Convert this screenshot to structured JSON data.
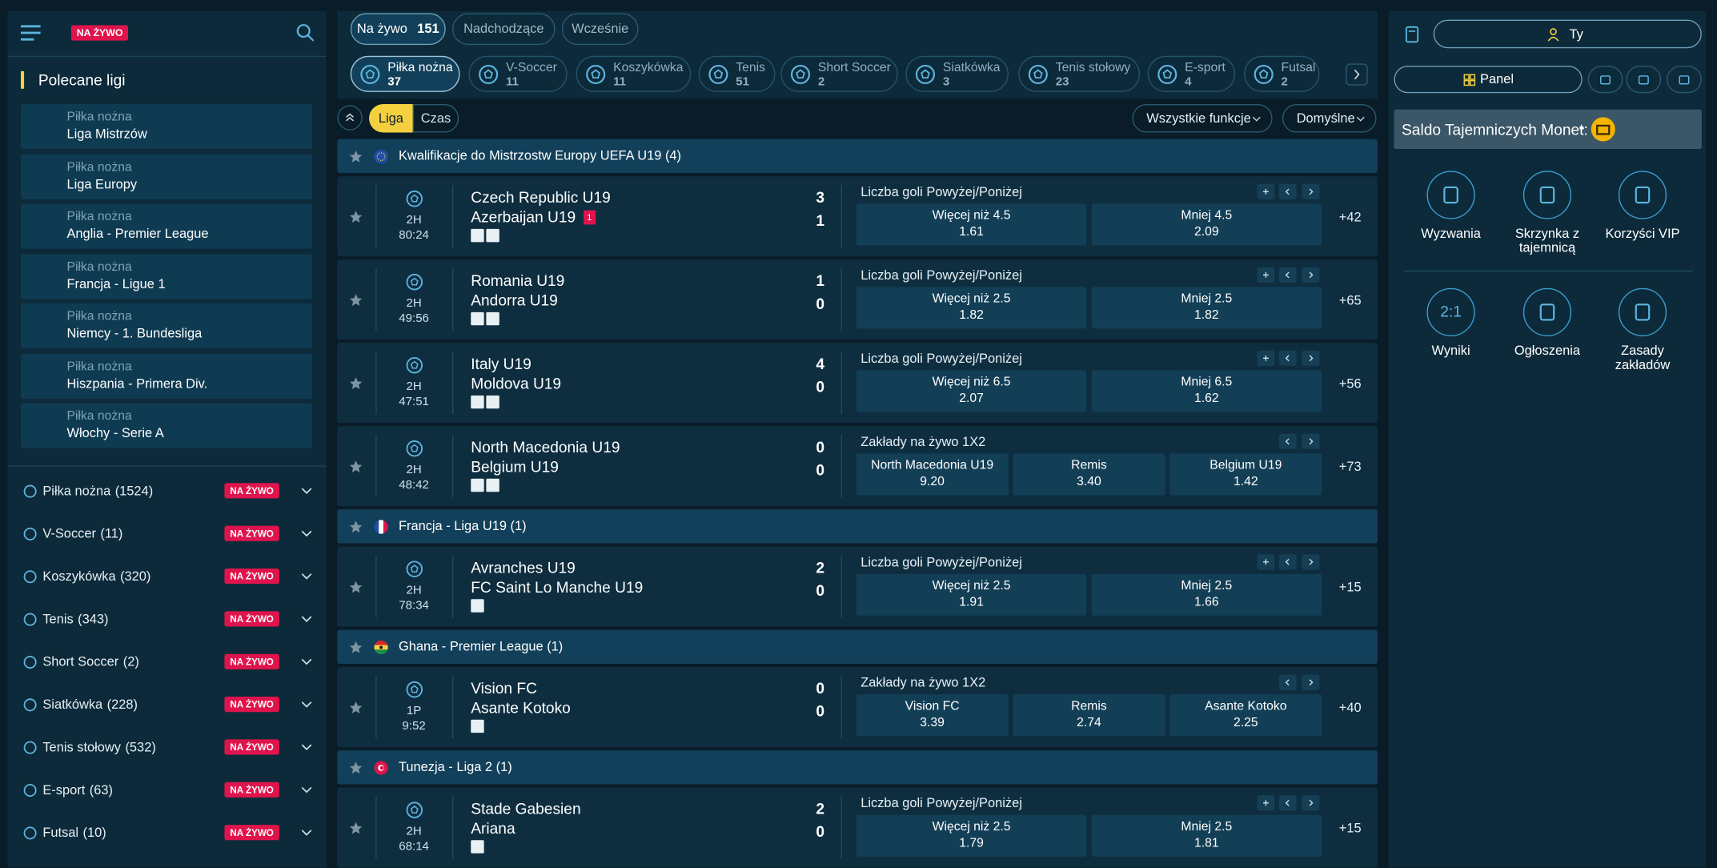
{
  "header": {
    "live_badge": "NA ŻYWO"
  },
  "featured": {
    "title": "Polecane ligi",
    "items": [
      {
        "sport": "Piłka nożna",
        "league": "Liga Mistrzów"
      },
      {
        "sport": "Piłka nożna",
        "league": "Liga Europy"
      },
      {
        "sport": "Piłka nożna",
        "league": "Anglia - Premier League"
      },
      {
        "sport": "Piłka nożna",
        "league": "Francja - Ligue 1"
      },
      {
        "sport": "Piłka nożna",
        "league": "Niemcy - 1. Bundesliga"
      },
      {
        "sport": "Piłka nożna",
        "league": "Hiszpania - Primera Div."
      },
      {
        "sport": "Piłka nożna",
        "league": "Włochy - Serie A"
      }
    ]
  },
  "sports": [
    {
      "name": "Piłka nożna",
      "count": "(1524)"
    },
    {
      "name": "V-Soccer",
      "count": "(11)"
    },
    {
      "name": "Koszykówka",
      "count": "(320)"
    },
    {
      "name": "Tenis",
      "count": "(343)"
    },
    {
      "name": "Short Soccer",
      "count": "(2)"
    },
    {
      "name": "Siatkówka",
      "count": "(228)"
    },
    {
      "name": "Tenis stołowy",
      "count": "(532)"
    },
    {
      "name": "E-sport",
      "count": "(63)"
    },
    {
      "name": "Futsal",
      "count": "(10)"
    }
  ],
  "tabs": [
    {
      "label": "Na żywo",
      "count": 151
    },
    {
      "label": "Nadchodzące"
    },
    {
      "label": "Wcześnie"
    }
  ],
  "sport_tabs": [
    {
      "name": "Piłka nożna",
      "count": 37
    },
    {
      "name": "V-Soccer",
      "count": 11
    },
    {
      "name": "Koszykówka",
      "count": 11
    },
    {
      "name": "Tenis",
      "count": 51
    },
    {
      "name": "Short Soccer",
      "count": 2
    },
    {
      "name": "Siatkówka",
      "count": 3
    },
    {
      "name": "Tenis stołowy",
      "count": 23
    },
    {
      "name": "E-sport",
      "count": 4
    },
    {
      "name": "Futsal",
      "count": 2
    }
  ],
  "filters": {
    "league": "Liga",
    "time": "Czas",
    "features": "Wszystkie funkcje",
    "sort": "Domyślne"
  },
  "groups": [
    {
      "title": "Kwalifikacje do Mistrzostw Europy UEFA U19 (4)",
      "matches": [
        {
          "period": "2H",
          "time": "80:24",
          "home": "Czech Republic U19",
          "away": "Azerbaijan U19",
          "away_red": 1,
          "home_score": 3,
          "away_score": 1,
          "market": "Liczba goli Powyżej/Poniżej",
          "odds": [
            {
              "label": "Więcej niż 4.5",
              "value": "1.61"
            },
            {
              "label": "Mniej 4.5",
              "value": "2.09"
            }
          ],
          "more": "+42"
        },
        {
          "period": "2H",
          "time": "49:56",
          "home": "Romania U19",
          "away": "Andorra U19",
          "home_score": 1,
          "away_score": 0,
          "market": "Liczba goli Powyżej/Poniżej",
          "odds": [
            {
              "label": "Więcej niż 2.5",
              "value": "1.82"
            },
            {
              "label": "Mniej 2.5",
              "value": "1.82"
            }
          ],
          "more": "+65"
        },
        {
          "period": "2H",
          "time": "47:51",
          "home": "Italy U19",
          "away": "Moldova U19",
          "home_score": 4,
          "away_score": 0,
          "market": "Liczba goli Powyżej/Poniżej",
          "odds": [
            {
              "label": "Więcej niż 6.5",
              "value": "2.07"
            },
            {
              "label": "Mniej 6.5",
              "value": "1.62"
            }
          ],
          "more": "+56"
        },
        {
          "period": "2H",
          "time": "48:42",
          "home": "North Macedonia U19",
          "away": "Belgium U19",
          "home_score": 0,
          "away_score": 0,
          "market": "Zakłady na żywo 1X2",
          "odds": [
            {
              "label": "North Macedonia U19",
              "value": "9.20"
            },
            {
              "label": "Remis",
              "value": "3.40"
            },
            {
              "label": "Belgium U19",
              "value": "1.42"
            }
          ],
          "more": "+73"
        }
      ]
    },
    {
      "title": "Francja - Liga U19 (1)",
      "matches": [
        {
          "period": "2H",
          "time": "78:34",
          "home": "Avranches U19",
          "away": "FC Saint Lo Manche U19",
          "home_score": 2,
          "away_score": 0,
          "market": "Liczba goli Powyżej/Poniżej",
          "odds": [
            {
              "label": "Więcej niż 2.5",
              "value": "1.91"
            },
            {
              "label": "Mniej 2.5",
              "value": "1.66"
            }
          ],
          "more": "+15"
        }
      ]
    },
    {
      "title": "Ghana - Premier League (1)",
      "matches": [
        {
          "period": "1P",
          "time": "9:52",
          "home": "Vision FC",
          "away": "Asante Kotoko",
          "home_score": 0,
          "away_score": 0,
          "market": "Zakłady na żywo 1X2",
          "odds": [
            {
              "label": "Vision FC",
              "value": "3.39"
            },
            {
              "label": "Remis",
              "value": "2.74"
            },
            {
              "label": "Asante Kotoko",
              "value": "2.25"
            }
          ],
          "more": "+40"
        }
      ]
    },
    {
      "title": "Tunezja - Liga 2 (1)",
      "matches": [
        {
          "period": "2H",
          "time": "68:14",
          "home": "Stade Gabesien",
          "away": "Ariana",
          "home_score": 2,
          "away_score": 0,
          "market": "Liczba goli Powyżej/Poniżej",
          "odds": [
            {
              "label": "Więcej niż 2.5",
              "value": "1.79"
            },
            {
              "label": "Mniej 2.5",
              "value": "1.81"
            }
          ],
          "more": "+15"
        }
      ]
    }
  ],
  "account": {
    "user": "Ty",
    "panel": "Panel",
    "balance_label": "Saldo Tajemniczych Monet:",
    "balance_value": "-"
  },
  "tiles": [
    {
      "label": "Wyzwania"
    },
    {
      "label": "Skrzynka z tajemnicą"
    },
    {
      "label": "Korzyści VIP"
    },
    {
      "label": "Wyniki",
      "icon_text": "2:1"
    },
    {
      "label": "Ogłoszenia"
    },
    {
      "label": "Zasady zakładów"
    }
  ]
}
